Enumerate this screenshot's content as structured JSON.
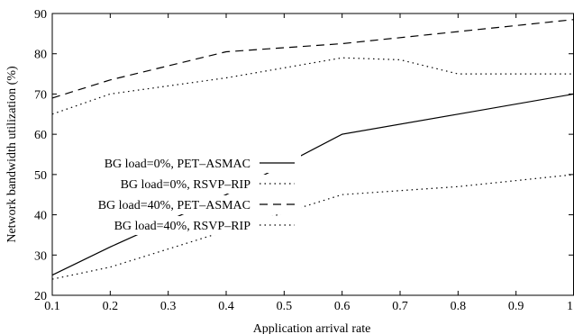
{
  "chart_data": {
    "type": "line",
    "title": "",
    "xlabel": "Application arrival rate",
    "ylabel": "Network bandwidth utilization (%)",
    "xlim": [
      0.1,
      1.0
    ],
    "ylim": [
      20,
      90
    ],
    "xticks": [
      0.1,
      0.2,
      0.3,
      0.4,
      0.5,
      0.6,
      0.7,
      0.8,
      0.9,
      1.0
    ],
    "xtick_labels": [
      "0.1",
      "0.2",
      "0.3",
      "0.4",
      "0.5",
      "0.6",
      "0.7",
      "0.8",
      "0.9",
      "1"
    ],
    "yticks": [
      20,
      30,
      40,
      50,
      60,
      70,
      80,
      90
    ],
    "ytick_labels": [
      "20",
      "30",
      "40",
      "50",
      "60",
      "70",
      "80",
      "90"
    ],
    "grid": false,
    "legend_position": "left-middle",
    "series": [
      {
        "name": "BG load=0%, PET–ASMAC",
        "style": "solid",
        "color": "#000000",
        "x": [
          0.1,
          0.2,
          0.4,
          0.6,
          0.8,
          1.0
        ],
        "y": [
          25,
          32,
          45,
          60,
          65,
          70
        ]
      },
      {
        "name": "BG load=0%, RSVP–RIP",
        "style": "dotted",
        "color": "#000000",
        "x": [
          0.1,
          0.2,
          0.4,
          0.6,
          0.8,
          1.0
        ],
        "y": [
          24,
          27,
          36,
          45,
          47,
          50
        ]
      },
      {
        "name": "BG load=40%, PET–ASMAC",
        "style": "dashed",
        "color": "#000000",
        "x": [
          0.1,
          0.2,
          0.4,
          0.6,
          0.8,
          1.0
        ],
        "y": [
          69,
          73.5,
          80.5,
          82.5,
          85.5,
          88.5
        ]
      },
      {
        "name": "BG load=40%, RSVP–RIP",
        "style": "dotted",
        "color": "#000000",
        "x": [
          0.1,
          0.2,
          0.4,
          0.6,
          0.7,
          0.8,
          1.0
        ],
        "y": [
          65,
          70,
          74,
          79,
          78.5,
          75,
          75
        ]
      }
    ]
  }
}
